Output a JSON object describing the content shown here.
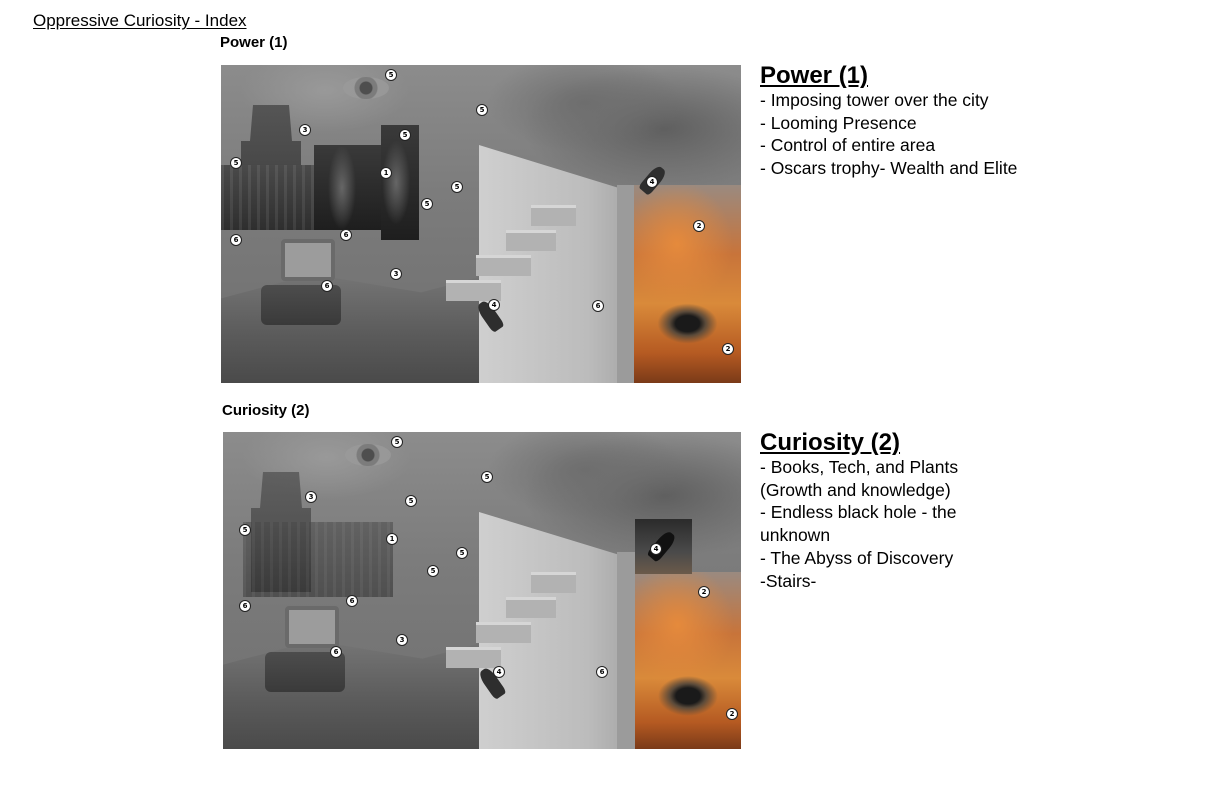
{
  "document": {
    "title": "Oppressive Curiosity - Index"
  },
  "sections": [
    {
      "label": "Power (1)",
      "notes_title": "Power (1)",
      "notes": [
        "- Imposing tower over the city",
        "- Looming Presence",
        "- Control of entire area",
        "- Oscars trophy- Wealth and Elite"
      ],
      "markers": [
        "5",
        "5",
        "3",
        "5",
        "5",
        "1",
        "5",
        "5",
        "4",
        "6",
        "6",
        "2",
        "3",
        "6",
        "4",
        "6",
        "2"
      ]
    },
    {
      "label": "Curiosity (2)",
      "notes_title": "Curiosity (2)",
      "notes": [
        "- Books, Tech, and Plants",
        "(Growth and knowledge)",
        "- Endless black hole - the",
        "unknown",
        "- The Abyss of Discovery",
        "-Stairs-"
      ],
      "markers": [
        "5",
        "5",
        "3",
        "5",
        "5",
        "1",
        "5",
        "4",
        "5",
        "2",
        "6",
        "6",
        "3",
        "6",
        "4",
        "6",
        "2"
      ]
    }
  ]
}
